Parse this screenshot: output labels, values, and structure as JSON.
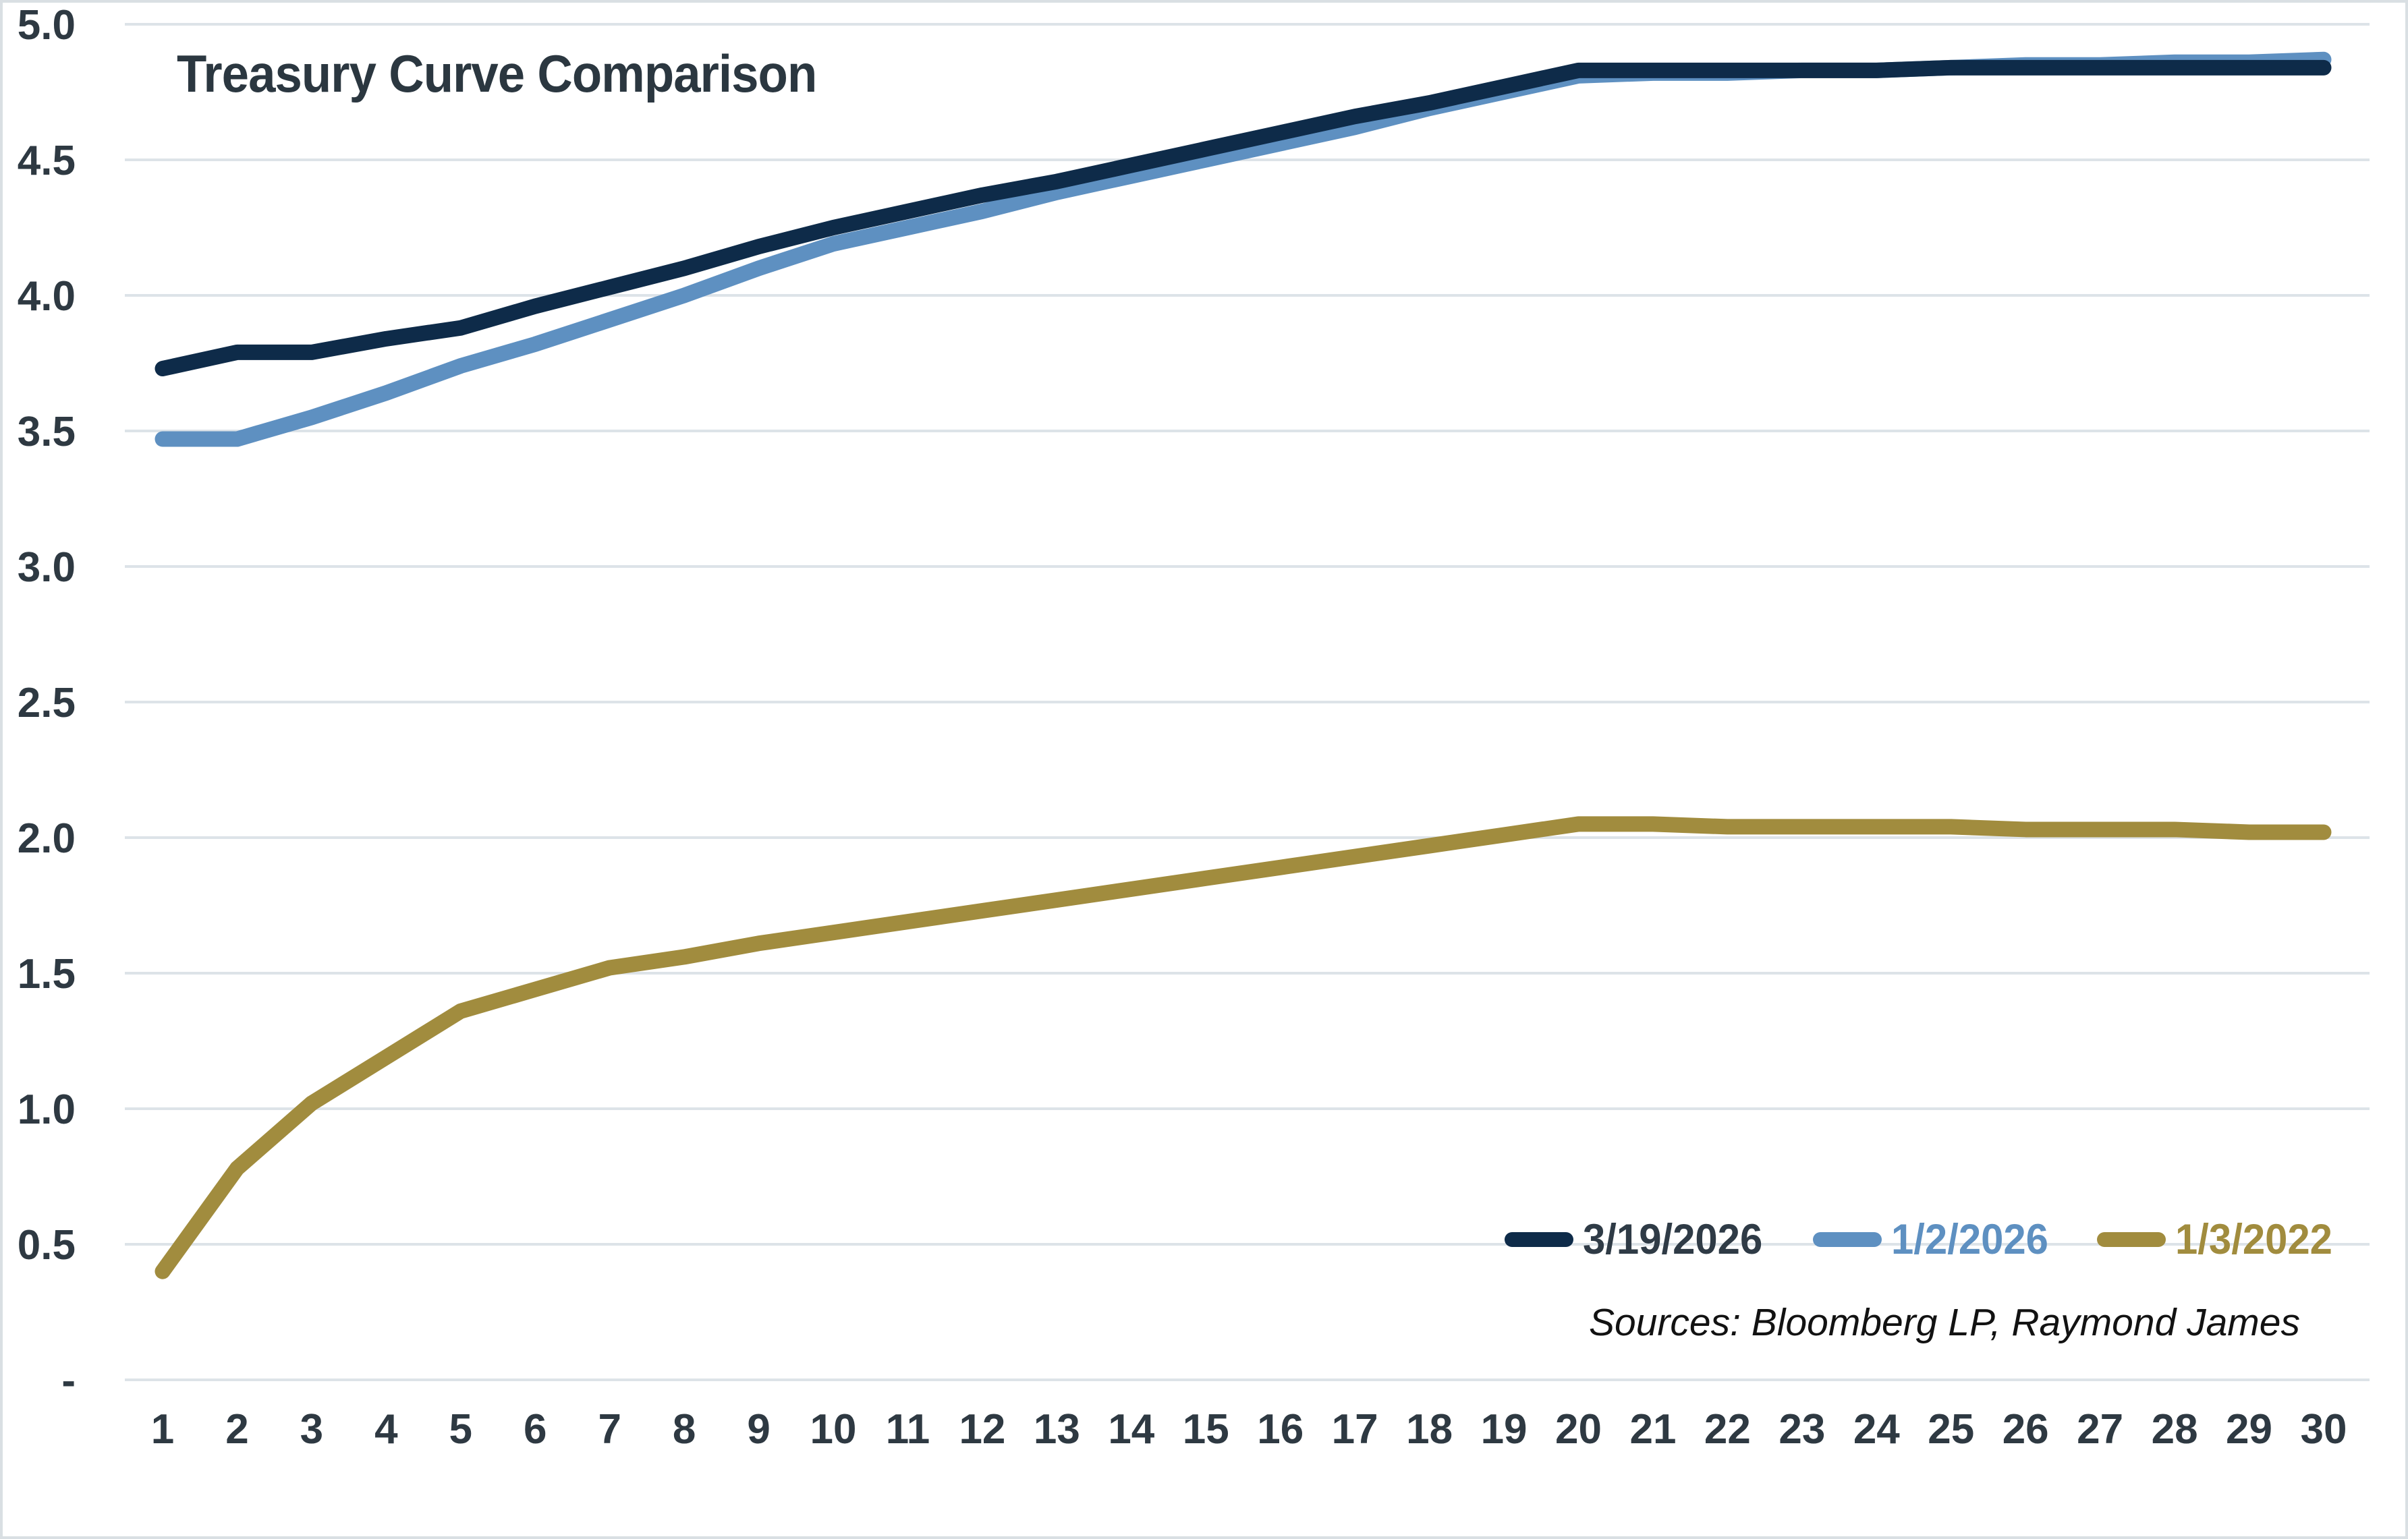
{
  "chart_data": {
    "type": "line",
    "title": "Treasury Curve Comparison",
    "xlabel": "",
    "ylabel": "",
    "categories": [
      1,
      2,
      3,
      4,
      5,
      6,
      7,
      8,
      9,
      10,
      11,
      12,
      13,
      14,
      15,
      16,
      17,
      18,
      19,
      20,
      21,
      22,
      23,
      24,
      25,
      26,
      27,
      28,
      29,
      30
    ],
    "series": [
      {
        "name": "3/19/2026",
        "color": "#0e2b49",
        "label_color": "#2f3b46",
        "values": [
          3.73,
          3.79,
          3.79,
          3.84,
          3.88,
          3.96,
          4.03,
          4.1,
          4.18,
          4.25,
          4.31,
          4.37,
          4.42,
          4.48,
          4.54,
          4.6,
          4.66,
          4.71,
          4.77,
          4.83,
          4.83,
          4.83,
          4.83,
          4.83,
          4.84,
          4.84,
          4.84,
          4.84,
          4.84,
          4.84
        ]
      },
      {
        "name": "1/2/2026",
        "color": "#5e90c1",
        "label_color": "#5e90c1",
        "values": [
          3.47,
          3.47,
          3.55,
          3.64,
          3.74,
          3.82,
          3.91,
          4.0,
          4.1,
          4.19,
          4.25,
          4.31,
          4.38,
          4.44,
          4.5,
          4.56,
          4.62,
          4.69,
          4.75,
          4.81,
          4.82,
          4.82,
          4.83,
          4.83,
          4.84,
          4.85,
          4.85,
          4.86,
          4.86,
          4.87
        ]
      },
      {
        "name": "1/3/2022",
        "color": "#a18c3e",
        "label_color": "#a18c3e",
        "values": [
          0.4,
          0.78,
          1.02,
          1.19,
          1.36,
          1.44,
          1.52,
          1.56,
          1.61,
          1.65,
          1.69,
          1.73,
          1.77,
          1.81,
          1.85,
          1.89,
          1.93,
          1.97,
          2.01,
          2.05,
          2.05,
          2.04,
          2.04,
          2.04,
          2.04,
          2.03,
          2.03,
          2.03,
          2.02,
          2.02
        ]
      }
    ],
    "y_ticks": [
      {
        "label": "5.0",
        "value": 5.0
      },
      {
        "label": "4.5",
        "value": 4.5
      },
      {
        "label": "4.0",
        "value": 4.0
      },
      {
        "label": "3.5",
        "value": 3.5
      },
      {
        "label": "3.0",
        "value": 3.0
      },
      {
        "label": "2.5",
        "value": 2.5
      },
      {
        "label": "2.0",
        "value": 2.0
      },
      {
        "label": "1.5",
        "value": 1.5
      },
      {
        "label": "1.0",
        "value": 1.0
      },
      {
        "label": "0.5",
        "value": 0.5
      },
      {
        "label": "-",
        "value": 0.0
      }
    ],
    "ylim": [
      0,
      5
    ],
    "grid": "horizontal",
    "legend_position": "bottom-right-inside",
    "source_note": "Sources: Bloomberg LP, Raymond James"
  },
  "style_colors": {
    "gridline": "#dde3e8",
    "tick_label": "#2e3942",
    "title": "#2b3740",
    "frame_border": "#d9dfe3"
  }
}
